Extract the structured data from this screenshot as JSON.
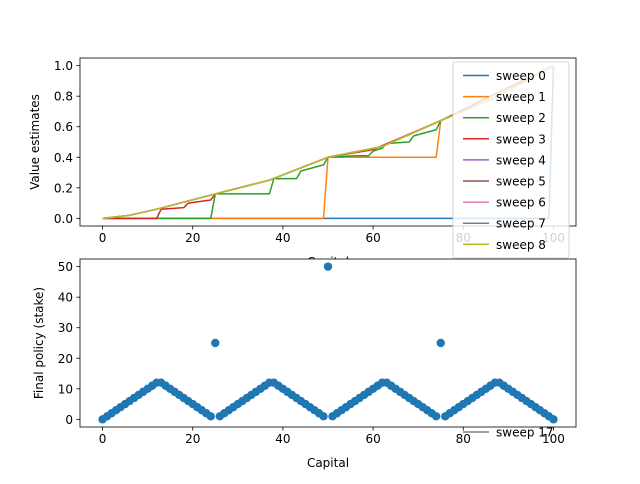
{
  "chart_data": [
    {
      "type": "line",
      "title": "",
      "xlabel": "Capital",
      "ylabel": "Value estimates",
      "xlim": [
        -5,
        105
      ],
      "ylim": [
        -0.05,
        1.05
      ],
      "xticks": [
        "0",
        "20",
        "40",
        "60",
        "80",
        "100"
      ],
      "yticks": [
        "0.0",
        "0.2",
        "0.4",
        "0.6",
        "0.8",
        "1.0"
      ],
      "grid": false,
      "legend_position": "upper-right",
      "series": [
        {
          "name": "sweep 0",
          "color": "#1f77b4",
          "points": [
            [
              0,
              0
            ],
            [
              99,
              0
            ],
            [
              100,
              1
            ]
          ]
        },
        {
          "name": "sweep 1",
          "color": "#ff7f0e",
          "points": [
            [
              0,
              0
            ],
            [
              49,
              0
            ],
            [
              50,
              0.4
            ],
            [
              74,
              0.4
            ],
            [
              75,
              0.64
            ],
            [
              100,
              1
            ]
          ]
        },
        {
          "name": "sweep 2",
          "color": "#2ca02c",
          "points": [
            [
              0,
              0
            ],
            [
              24,
              0
            ],
            [
              25,
              0.16
            ],
            [
              37,
              0.16
            ],
            [
              38,
              0.26
            ],
            [
              43,
              0.26
            ],
            [
              44,
              0.31
            ],
            [
              49,
              0.35
            ],
            [
              50,
              0.4
            ],
            [
              56,
              0.41
            ],
            [
              59,
              0.41
            ],
            [
              60,
              0.44
            ],
            [
              62,
              0.46
            ],
            [
              63,
              0.49
            ],
            [
              68,
              0.5
            ],
            [
              69,
              0.54
            ],
            [
              74,
              0.58
            ],
            [
              75,
              0.64
            ],
            [
              100,
              1
            ]
          ]
        },
        {
          "name": "sweep 3",
          "color": "#d62728",
          "points": [
            [
              0,
              0
            ],
            [
              12,
              0
            ],
            [
              13,
              0.06
            ],
            [
              18,
              0.07
            ],
            [
              19,
              0.1
            ],
            [
              24,
              0.12
            ],
            [
              25,
              0.16
            ],
            [
              37,
              0.25
            ],
            [
              50,
              0.4
            ],
            [
              60,
              0.45
            ],
            [
              75,
              0.64
            ],
            [
              100,
              1
            ]
          ]
        },
        {
          "name": "sweep 4",
          "color": "#9467bd",
          "points": [
            [
              0,
              0
            ],
            [
              6,
              0.02
            ],
            [
              12,
              0.06
            ],
            [
              25,
              0.16
            ],
            [
              37,
              0.25
            ],
            [
              50,
              0.4
            ],
            [
              62,
              0.47
            ],
            [
              75,
              0.64
            ],
            [
              87,
              0.79
            ],
            [
              100,
              1
            ]
          ]
        },
        {
          "name": "sweep 5",
          "color": "#8c564b",
          "points": [
            [
              0,
              0
            ],
            [
              6,
              0.02
            ],
            [
              12,
              0.06
            ],
            [
              25,
              0.16
            ],
            [
              37,
              0.25
            ],
            [
              50,
              0.4
            ],
            [
              62,
              0.47
            ],
            [
              75,
              0.64
            ],
            [
              87,
              0.79
            ],
            [
              100,
              1
            ]
          ]
        },
        {
          "name": "sweep 6",
          "color": "#e377c2",
          "points": [
            [
              0,
              0
            ],
            [
              6,
              0.02
            ],
            [
              12,
              0.06
            ],
            [
              25,
              0.16
            ],
            [
              37,
              0.25
            ],
            [
              50,
              0.4
            ],
            [
              62,
              0.47
            ],
            [
              75,
              0.64
            ],
            [
              87,
              0.79
            ],
            [
              100,
              1
            ]
          ]
        },
        {
          "name": "sweep 7",
          "color": "#7f7f7f",
          "points": [
            [
              0,
              0
            ],
            [
              6,
              0.02
            ],
            [
              12,
              0.06
            ],
            [
              25,
              0.16
            ],
            [
              37,
              0.25
            ],
            [
              50,
              0.4
            ],
            [
              62,
              0.47
            ],
            [
              75,
              0.64
            ],
            [
              87,
              0.79
            ],
            [
              100,
              1
            ]
          ]
        },
        {
          "name": "sweep 8",
          "color": "#bcbd22",
          "points": [
            [
              0,
              0
            ],
            [
              6,
              0.02
            ],
            [
              12,
              0.06
            ],
            [
              25,
              0.16
            ],
            [
              37,
              0.25
            ],
            [
              50,
              0.4
            ],
            [
              62,
              0.47
            ],
            [
              75,
              0.64
            ],
            [
              87,
              0.79
            ],
            [
              100,
              1
            ]
          ]
        }
      ]
    },
    {
      "type": "scatter",
      "title": "",
      "xlabel": "Capital",
      "ylabel": "Final policy (stake)",
      "xlim": [
        -5,
        105
      ],
      "ylim": [
        -2.5,
        52.5
      ],
      "xticks": [
        "0",
        "20",
        "40",
        "60",
        "80",
        "100"
      ],
      "yticks": [
        "0",
        "10",
        "20",
        "30",
        "40",
        "50"
      ],
      "grid": false,
      "color": "#1f77b4",
      "legend_overlap_label": "sweep 17",
      "legend_overlap_color": "#7f7f7f",
      "x": [
        0,
        1,
        2,
        3,
        4,
        5,
        6,
        7,
        8,
        9,
        10,
        11,
        12,
        13,
        14,
        15,
        16,
        17,
        18,
        19,
        20,
        21,
        22,
        23,
        24,
        25,
        26,
        27,
        28,
        29,
        30,
        31,
        32,
        33,
        34,
        35,
        36,
        37,
        38,
        39,
        40,
        41,
        42,
        43,
        44,
        45,
        46,
        47,
        48,
        49,
        50,
        51,
        52,
        53,
        54,
        55,
        56,
        57,
        58,
        59,
        60,
        61,
        62,
        63,
        64,
        65,
        66,
        67,
        68,
        69,
        70,
        71,
        72,
        73,
        74,
        75,
        76,
        77,
        78,
        79,
        80,
        81,
        82,
        83,
        84,
        85,
        86,
        87,
        88,
        89,
        90,
        91,
        92,
        93,
        94,
        95,
        96,
        97,
        98,
        99,
        100
      ],
      "y": [
        0,
        1,
        2,
        3,
        4,
        5,
        6,
        7,
        8,
        9,
        10,
        11,
        12,
        12,
        11,
        10,
        9,
        8,
        7,
        6,
        5,
        4,
        3,
        2,
        1,
        25,
        1,
        2,
        3,
        4,
        5,
        6,
        7,
        8,
        9,
        10,
        11,
        12,
        12,
        11,
        10,
        9,
        8,
        7,
        6,
        5,
        4,
        3,
        2,
        1,
        50,
        1,
        2,
        3,
        4,
        5,
        6,
        7,
        8,
        9,
        10,
        11,
        12,
        12,
        11,
        10,
        9,
        8,
        7,
        6,
        5,
        4,
        3,
        2,
        1,
        25,
        1,
        2,
        3,
        4,
        5,
        6,
        7,
        8,
        9,
        10,
        11,
        12,
        12,
        11,
        10,
        9,
        8,
        7,
        6,
        5,
        4,
        3,
        2,
        1,
        0
      ]
    }
  ]
}
